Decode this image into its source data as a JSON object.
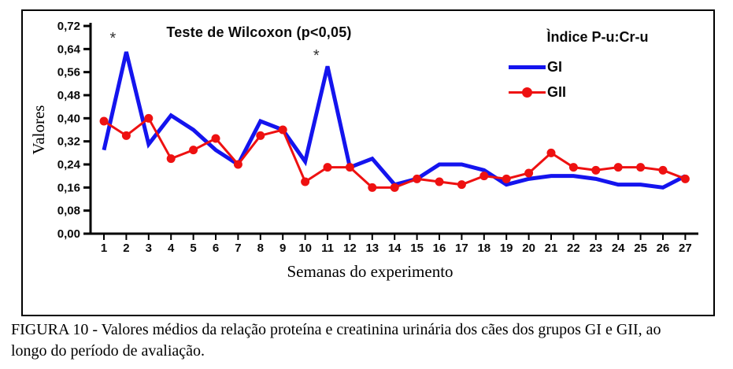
{
  "caption": {
    "line1": "FIGURA 10 - Valores médios da relação proteína e creatinina urinária dos cães dos grupos GI e GII, ao",
    "line2": "longo do período de avaliação."
  },
  "chart_data": {
    "type": "line",
    "title": "Teste de Wilcoxon (p<0,05)",
    "legend_title": "Ìndice P-u:Cr-u",
    "xlabel": "Semanas do experimento",
    "ylabel": "Valores",
    "x": [
      1,
      2,
      3,
      4,
      5,
      6,
      7,
      8,
      9,
      10,
      11,
      12,
      13,
      14,
      15,
      16,
      17,
      18,
      19,
      20,
      21,
      22,
      23,
      24,
      25,
      26,
      27
    ],
    "ylim": [
      0,
      0.72
    ],
    "ytick_step": 0.08,
    "ytick_labels": [
      "0,00",
      "0,08",
      "0,16",
      "0,24",
      "0,32",
      "0,40",
      "0,48",
      "0,56",
      "0,64",
      "0,72"
    ],
    "grid": false,
    "legend_position": "top-right",
    "axis_color": "#000000",
    "series": [
      {
        "name": "GI",
        "color": "#1414EE",
        "marker": "none",
        "values": [
          0.29,
          0.63,
          0.31,
          0.41,
          0.36,
          0.29,
          0.24,
          0.39,
          0.36,
          0.25,
          0.58,
          0.23,
          0.26,
          0.17,
          0.19,
          0.24,
          0.24,
          0.22,
          0.17,
          0.19,
          0.2,
          0.2,
          0.19,
          0.17,
          0.17,
          0.16,
          0.2
        ]
      },
      {
        "name": "GII",
        "color": "#EE1111",
        "marker": "circle",
        "values": [
          0.39,
          0.34,
          0.4,
          0.26,
          0.29,
          0.33,
          0.24,
          0.34,
          0.36,
          0.18,
          0.23,
          0.23,
          0.16,
          0.16,
          0.19,
          0.18,
          0.17,
          0.2,
          0.19,
          0.21,
          0.28,
          0.23,
          0.22,
          0.23,
          0.23,
          0.22,
          0.19
        ]
      }
    ],
    "annotations": [
      {
        "text": "*",
        "x": 1.4,
        "y": 0.66
      },
      {
        "text": "*",
        "x": 10.5,
        "y": 0.6
      }
    ]
  }
}
